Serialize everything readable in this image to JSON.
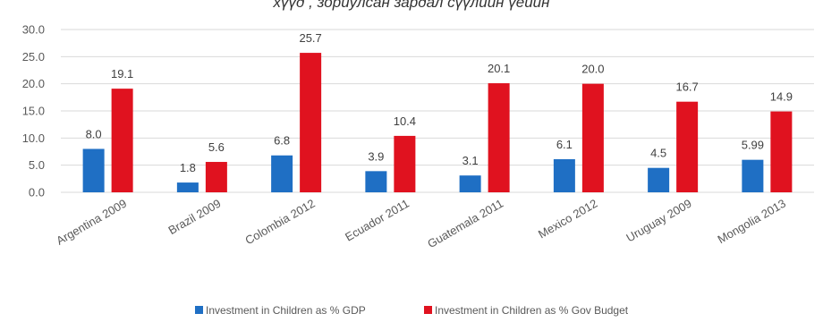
{
  "title": "хүүд , зориулсан зардал сүүлийн үеийн",
  "colors": {
    "gdp": "#1f6fc4",
    "budget": "#e0121f",
    "grid": "#d9d9d9",
    "text": "#595959"
  },
  "chart_data": {
    "type": "bar",
    "title": "хүүд , зориулсан зардал сүүлийн үеийн",
    "xlabel": "",
    "ylabel": "",
    "ylim": [
      0,
      30
    ],
    "yticks": [
      "0.0",
      "5.0",
      "10.0",
      "15.0",
      "20.0",
      "25.0",
      "30.0"
    ],
    "grid": true,
    "legend_position": "bottom",
    "categories": [
      "Argentina 2009",
      "Brazil 2009",
      "Colombia 2012",
      "Ecuador 2011",
      "Guatemala 2011",
      "Mexico 2012",
      "Uruguay 2009",
      "Mongolia 2013"
    ],
    "series": [
      {
        "name": "Investment in Children as % GDP",
        "values": [
          8.0,
          1.8,
          6.8,
          3.9,
          3.1,
          6.1,
          4.5,
          5.99
        ],
        "labels": [
          "8.0",
          "1.8",
          "6.8",
          "3.9",
          "3.1",
          "6.1",
          "4.5",
          "5.99"
        ]
      },
      {
        "name": "Investment in Children as % Gov Budget",
        "values": [
          19.1,
          5.6,
          25.7,
          10.4,
          20.1,
          20.0,
          16.7,
          14.9
        ],
        "labels": [
          "19.1",
          "5.6",
          "25.7",
          "10.4",
          "20.1",
          "20.0",
          "16.7",
          "14.9"
        ]
      }
    ]
  }
}
